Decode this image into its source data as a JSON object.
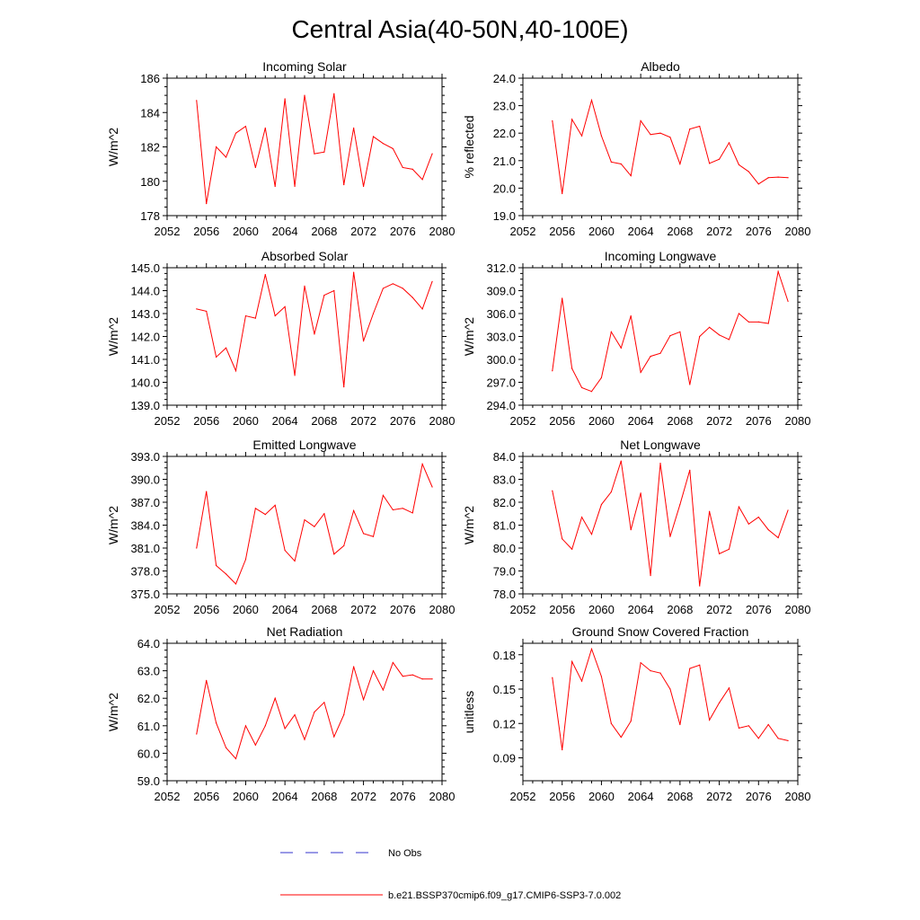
{
  "main_title": "Central Asia(40-50N,40-100E)",
  "series_color": "#ff0000",
  "obs_color": "#3333cc",
  "legend": {
    "obs_label": "No Obs",
    "model_label": "b.e21.BSSP370cmip6.f09_g17.CMIP6-SSP3-7.0.002"
  },
  "chart_data": [
    {
      "type": "line",
      "title": "Incoming Solar",
      "ylabel": "W/m^2",
      "xlabel": "",
      "xlim": [
        2052,
        2080
      ],
      "ylim": [
        178,
        186
      ],
      "xticks": [
        2052,
        2056,
        2060,
        2064,
        2068,
        2072,
        2076,
        2080
      ],
      "yticks": [
        178,
        180,
        182,
        184,
        186
      ],
      "ytick_labels": [
        "178",
        "180",
        "182",
        "184",
        "186"
      ],
      "x": [
        2055,
        2056,
        2057,
        2058,
        2059,
        2060,
        2061,
        2062,
        2063,
        2064,
        2065,
        2066,
        2067,
        2068,
        2069,
        2070,
        2071,
        2072,
        2073,
        2074,
        2075,
        2076,
        2077,
        2078,
        2079
      ],
      "values": [
        184.7,
        178.7,
        182.0,
        181.4,
        182.8,
        183.2,
        180.8,
        183.1,
        179.7,
        184.8,
        179.7,
        185.0,
        181.6,
        181.7,
        185.1,
        179.8,
        183.1,
        179.7,
        182.6,
        182.2,
        181.9,
        180.8,
        180.7,
        180.1,
        181.6
      ]
    },
    {
      "type": "line",
      "title": "Albedo",
      "ylabel": "% reflected",
      "xlabel": "",
      "xlim": [
        2052,
        2080
      ],
      "ylim": [
        19.0,
        24.0
      ],
      "xticks": [
        2052,
        2056,
        2060,
        2064,
        2068,
        2072,
        2076,
        2080
      ],
      "yticks": [
        19,
        20,
        21,
        22,
        23,
        24
      ],
      "ytick_labels": [
        "19.0",
        "20.0",
        "21.0",
        "22.0",
        "23.0",
        "24.0"
      ],
      "x": [
        2055,
        2056,
        2057,
        2058,
        2059,
        2060,
        2061,
        2062,
        2063,
        2064,
        2065,
        2066,
        2067,
        2068,
        2069,
        2070,
        2071,
        2072,
        2073,
        2074,
        2075,
        2076,
        2077,
        2078,
        2079
      ],
      "values": [
        22.45,
        19.8,
        22.5,
        21.9,
        23.2,
        21.9,
        20.95,
        20.88,
        20.45,
        22.45,
        21.95,
        22.0,
        21.85,
        20.88,
        22.15,
        22.25,
        20.9,
        21.05,
        21.65,
        20.85,
        20.6,
        20.15,
        20.38,
        20.4,
        20.38
      ]
    },
    {
      "type": "line",
      "title": "Absorbed Solar",
      "ylabel": "W/m^2",
      "xlabel": "",
      "xlim": [
        2052,
        2080
      ],
      "ylim": [
        139.0,
        145.0
      ],
      "xticks": [
        2052,
        2056,
        2060,
        2064,
        2068,
        2072,
        2076,
        2080
      ],
      "yticks": [
        139,
        140,
        141,
        142,
        143,
        144,
        145
      ],
      "ytick_labels": [
        "139.0",
        "140.0",
        "141.0",
        "142.0",
        "143.0",
        "144.0",
        "145.0"
      ],
      "x": [
        2055,
        2056,
        2057,
        2058,
        2059,
        2060,
        2061,
        2062,
        2063,
        2064,
        2065,
        2066,
        2067,
        2068,
        2069,
        2070,
        2071,
        2072,
        2073,
        2074,
        2075,
        2076,
        2077,
        2078,
        2079
      ],
      "values": [
        143.2,
        143.1,
        141.1,
        141.5,
        140.5,
        142.9,
        142.8,
        144.7,
        142.9,
        143.3,
        140.3,
        144.2,
        142.1,
        143.8,
        144.0,
        139.8,
        144.8,
        141.8,
        143.0,
        144.1,
        144.3,
        144.1,
        143.7,
        143.2,
        144.4
      ]
    },
    {
      "type": "line",
      "title": "Incoming Longwave",
      "ylabel": "W/m^2",
      "xlabel": "",
      "xlim": [
        2052,
        2080
      ],
      "ylim": [
        294.0,
        312.0
      ],
      "xticks": [
        2052,
        2056,
        2060,
        2064,
        2068,
        2072,
        2076,
        2080
      ],
      "yticks": [
        294,
        297,
        300,
        303,
        306,
        309,
        312
      ],
      "ytick_labels": [
        "294.0",
        "297.0",
        "300.0",
        "303.0",
        "306.0",
        "309.0",
        "312.0"
      ],
      "x": [
        2055,
        2056,
        2057,
        2058,
        2059,
        2060,
        2061,
        2062,
        2063,
        2064,
        2065,
        2066,
        2067,
        2068,
        2069,
        2070,
        2071,
        2072,
        2073,
        2074,
        2075,
        2076,
        2077,
        2078,
        2079
      ],
      "values": [
        298.5,
        308.0,
        298.8,
        296.3,
        295.8,
        297.6,
        303.6,
        301.5,
        305.7,
        298.3,
        300.4,
        300.8,
        303.1,
        303.6,
        296.7,
        303.0,
        304.2,
        303.2,
        302.6,
        306.0,
        304.9,
        304.9,
        304.7,
        311.5,
        307.6
      ]
    },
    {
      "type": "line",
      "title": "Emitted Longwave",
      "ylabel": "W/m^2",
      "xlabel": "",
      "xlim": [
        2052,
        2080
      ],
      "ylim": [
        375.0,
        393.0
      ],
      "xticks": [
        2052,
        2056,
        2060,
        2064,
        2068,
        2072,
        2076,
        2080
      ],
      "yticks": [
        375,
        378,
        381,
        384,
        387,
        390,
        393
      ],
      "ytick_labels": [
        "375.0",
        "378.0",
        "381.0",
        "384.0",
        "387.0",
        "390.0",
        "393.0"
      ],
      "x": [
        2055,
        2056,
        2057,
        2058,
        2059,
        2060,
        2061,
        2062,
        2063,
        2064,
        2065,
        2066,
        2067,
        2068,
        2069,
        2070,
        2071,
        2072,
        2073,
        2074,
        2075,
        2076,
        2077,
        2078,
        2079
      ],
      "values": [
        381.0,
        388.4,
        378.7,
        377.6,
        376.3,
        379.5,
        386.2,
        385.4,
        386.6,
        380.7,
        379.3,
        384.7,
        383.8,
        385.5,
        380.2,
        381.3,
        385.9,
        382.9,
        382.5,
        387.9,
        386.0,
        386.2,
        385.6,
        392.0,
        389.0
      ]
    },
    {
      "type": "line",
      "title": "Net Longwave",
      "ylabel": "W/m^2",
      "xlabel": "",
      "xlim": [
        2052,
        2080
      ],
      "ylim": [
        78.0,
        84.0
      ],
      "xticks": [
        2052,
        2056,
        2060,
        2064,
        2068,
        2072,
        2076,
        2080
      ],
      "yticks": [
        78,
        79,
        80,
        81,
        82,
        83,
        84
      ],
      "ytick_labels": [
        "78.0",
        "79.0",
        "80.0",
        "81.0",
        "82.0",
        "83.0",
        "84.0"
      ],
      "x": [
        2055,
        2056,
        2057,
        2058,
        2059,
        2060,
        2061,
        2062,
        2063,
        2064,
        2065,
        2066,
        2067,
        2068,
        2069,
        2070,
        2071,
        2072,
        2073,
        2074,
        2075,
        2076,
        2077,
        2078,
        2079
      ],
      "values": [
        82.5,
        80.4,
        79.95,
        81.35,
        80.6,
        81.9,
        82.45,
        83.8,
        80.8,
        82.4,
        78.8,
        83.7,
        80.5,
        81.9,
        83.4,
        78.35,
        81.6,
        79.75,
        79.95,
        81.8,
        81.05,
        81.35,
        80.8,
        80.45,
        81.65
      ]
    },
    {
      "type": "line",
      "title": "Net Radiation",
      "ylabel": "W/m^2",
      "xlabel": "",
      "xlim": [
        2052,
        2080
      ],
      "ylim": [
        59.0,
        64.0
      ],
      "xticks": [
        2052,
        2056,
        2060,
        2064,
        2068,
        2072,
        2076,
        2080
      ],
      "yticks": [
        59,
        60,
        61,
        62,
        63,
        64
      ],
      "ytick_labels": [
        "59.0",
        "60.0",
        "61.0",
        "62.0",
        "63.0",
        "64.0"
      ],
      "x": [
        2055,
        2056,
        2057,
        2058,
        2059,
        2060,
        2061,
        2062,
        2063,
        2064,
        2065,
        2066,
        2067,
        2068,
        2069,
        2070,
        2071,
        2072,
        2073,
        2074,
        2075,
        2076,
        2077,
        2078,
        2079
      ],
      "values": [
        60.7,
        62.65,
        61.1,
        60.2,
        59.8,
        61.0,
        60.3,
        61.0,
        62.0,
        60.9,
        61.4,
        60.5,
        61.5,
        61.85,
        60.6,
        61.4,
        63.15,
        61.95,
        63.0,
        62.3,
        63.3,
        62.8,
        62.85,
        62.7,
        62.7
      ]
    },
    {
      "type": "line",
      "title": "Ground Snow Covered Fraction",
      "ylabel": "unitless",
      "xlabel": "",
      "xlim": [
        2052,
        2080
      ],
      "ylim": [
        0.07,
        0.19
      ],
      "xticks": [
        2052,
        2056,
        2060,
        2064,
        2068,
        2072,
        2076,
        2080
      ],
      "yticks": [
        0.09,
        0.12,
        0.15,
        0.18
      ],
      "ytick_labels": [
        "0.09",
        "0.12",
        "0.15",
        "0.18"
      ],
      "x": [
        2055,
        2056,
        2057,
        2058,
        2059,
        2060,
        2061,
        2062,
        2063,
        2064,
        2065,
        2066,
        2067,
        2068,
        2069,
        2070,
        2071,
        2072,
        2073,
        2074,
        2075,
        2076,
        2077,
        2078,
        2079
      ],
      "values": [
        0.16,
        0.097,
        0.174,
        0.157,
        0.185,
        0.161,
        0.12,
        0.108,
        0.122,
        0.173,
        0.166,
        0.164,
        0.15,
        0.119,
        0.168,
        0.171,
        0.123,
        0.138,
        0.151,
        0.116,
        0.118,
        0.107,
        0.119,
        0.107,
        0.105
      ]
    }
  ]
}
